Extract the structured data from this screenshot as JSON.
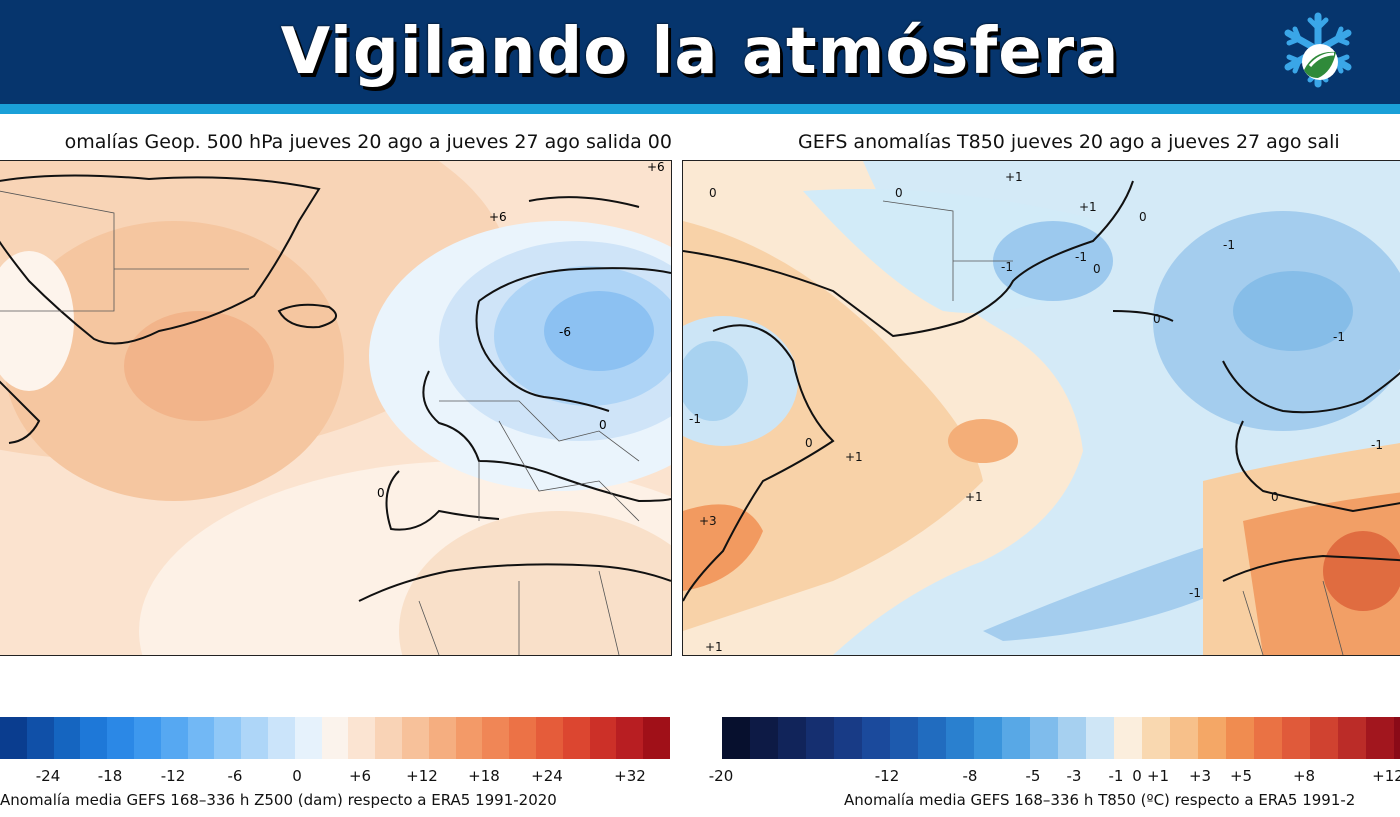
{
  "site": {
    "title": "Vigilando la atmósfera",
    "logo_icon": "snowflake-mountain-icon"
  },
  "left_panel": {
    "title": "omalías Geop. 500 hPa jueves 20 ago a jueves 27 ago salida 00",
    "contour_labels": [
      "+6",
      "+6",
      "-6",
      "0",
      "0"
    ],
    "colorbar": {
      "ticks": [
        "-24",
        "-18",
        "-12",
        "-6",
        "0",
        "+6",
        "+12",
        "+18",
        "+24",
        "+32"
      ],
      "label": "Anomalía media GEFS 168–336 h Z500 (dam) respecto a ERA5 1991-2020"
    }
  },
  "right_panel": {
    "title": "GEFS anomalías T850 jueves 20 ago a jueves 27 ago sali",
    "contour_labels": [
      "0",
      "0",
      "+1",
      "+1",
      "-1",
      "-1",
      "0",
      "0",
      "-1",
      "-1",
      "+1",
      "0",
      "+1",
      "+3",
      "-1",
      "+1",
      "0",
      "-1",
      "0",
      "-1"
    ],
    "colorbar": {
      "ticks": [
        "-20",
        "-12",
        "-8",
        "-5",
        "-3",
        "-1",
        "0",
        "+1",
        "+3",
        "+5",
        "+8",
        "+12"
      ],
      "label": "Anomalía media GEFS 168–336 h T850 (ºC) respecto a ERA5 1991-2"
    }
  },
  "colors": {
    "header_bg": "#06356d",
    "header_stripe": "#1aa0d8",
    "z500_scale": [
      "#0a3d8f",
      "#1050a8",
      "#1565c0",
      "#1e78d8",
      "#2b88e6",
      "#3d98ee",
      "#56a8f2",
      "#72b8f5",
      "#90c8f7",
      "#aed6f8",
      "#cbe4fa",
      "#e6f2fc",
      "#fbf3ec",
      "#fbe4d2",
      "#f9d3b6",
      "#f7c19a",
      "#f5ae80",
      "#f39a68",
      "#f08656",
      "#ec7246",
      "#e55c3a",
      "#dc4630",
      "#cc3028",
      "#b81e22",
      "#a01018"
    ],
    "t850_scale": [
      "#07102e",
      "#0d1a45",
      "#11245a",
      "#152f70",
      "#183b86",
      "#1b4a9c",
      "#1d5aae",
      "#216cbf",
      "#2a80cf",
      "#3a94dc",
      "#58a8e6",
      "#7fbcec",
      "#a6d0f0",
      "#cfe6f6",
      "#fbeedd",
      "#f9d8b0",
      "#f7c08a",
      "#f4a766",
      "#f08c50",
      "#ea7244",
      "#e05a3a",
      "#d04230",
      "#bb2c28",
      "#a2161e",
      "#8a0a18"
    ]
  }
}
